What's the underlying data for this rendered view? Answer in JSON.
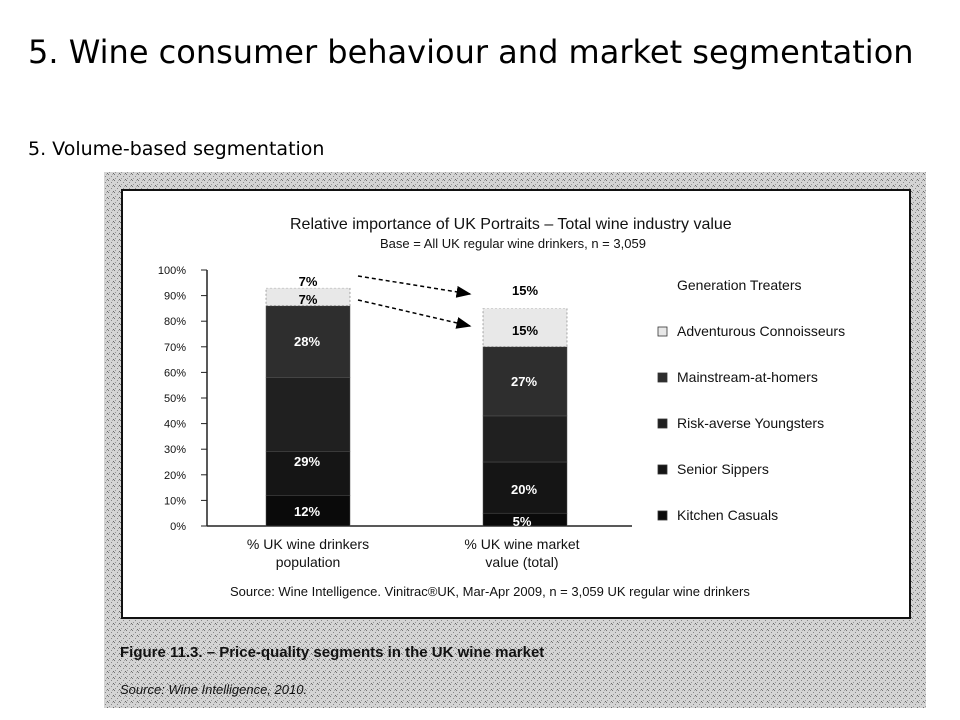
{
  "slide": {
    "title": "5. Wine consumer behaviour and market segmentation",
    "subtitle": "5. Volume-based segmentation"
  },
  "chart_data": {
    "type": "bar",
    "stacked": true,
    "title": "Relative importance of UK Portraits – Total wine industry value",
    "subtitle": "Base = All UK regular wine drinkers, n = 3,059",
    "categories": [
      "% UK wine drinkers population",
      "% UK wine market value (total)"
    ],
    "category_lines": [
      [
        "% UK wine drinkers",
        "population"
      ],
      [
        "% UK wine market",
        "value (total)"
      ]
    ],
    "ylim": [
      0,
      100
    ],
    "yticks": [
      "0%",
      "10%",
      "20%",
      "30%",
      "40%",
      "50%",
      "60%",
      "70%",
      "80%",
      "90%",
      "100%"
    ],
    "series": [
      {
        "name": "Kitchen Casuals",
        "values": [
          12,
          5
        ],
        "color": "#0a0a0a",
        "labels": [
          "12%",
          "5%"
        ]
      },
      {
        "name": "Senior Sippers",
        "values": [
          17,
          20
        ],
        "color": "#151515",
        "labels": [
          "",
          "20%"
        ]
      },
      {
        "name": "Risk-averse Youngsters",
        "values": [
          29,
          18
        ],
        "color": "#202020",
        "labels": [
          "29%",
          ""
        ]
      },
      {
        "name": "Mainstream-at-homers",
        "values": [
          28,
          27
        ],
        "color": "#2e2e2e",
        "labels": [
          "28%",
          "27%"
        ]
      },
      {
        "name": "Adventurous Connoisseurs",
        "values": [
          7,
          15
        ],
        "color": "#e8e8e8",
        "labels": [
          "7%",
          "15%"
        ]
      },
      {
        "name": "Generation Treaters",
        "values": [
          7,
          15
        ],
        "color": "#ffffff",
        "labels": [
          "7%",
          "15%"
        ]
      }
    ],
    "legend_position": "right",
    "source": "Source: Wine Intelligence. Vinitrac®UK, Mar-Apr 2009, n = 3,059 UK regular wine drinkers",
    "caption": "Figure 11.3. – Price-quality segments in the UK wine market",
    "caption_source": "Source: Wine Intelligence, 2010."
  }
}
